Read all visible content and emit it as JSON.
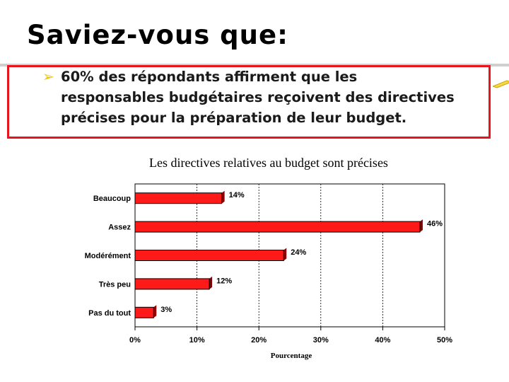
{
  "slide": {
    "title": "Saviez-vous que:",
    "callout_lines": [
      "60% des répondants affirment que les",
      "responsables budgétaires reçoivent des directives",
      "précises pour la préparation de leur budget."
    ],
    "bullet_icon": "arrow-bullet-icon",
    "accent_color": "#e8141b"
  },
  "chart_data": {
    "type": "bar",
    "orientation": "horizontal",
    "title": "Les directives relatives au budget sont précises",
    "xlabel": "Pourcentage",
    "ylabel": "",
    "categories": [
      "Beaucoup",
      "Assez",
      "Modérément",
      "Très peu",
      "Pas du tout"
    ],
    "values": [
      14,
      46,
      24,
      12,
      3
    ],
    "data_labels": [
      "14%",
      "46%",
      "24%",
      "12%",
      "3%"
    ],
    "xlim": [
      0,
      50
    ],
    "xticks": [
      0,
      10,
      20,
      30,
      40,
      50
    ],
    "xtick_labels": [
      "0%",
      "10%",
      "20%",
      "30%",
      "40%",
      "50%"
    ],
    "grid": "vertical dashed",
    "bar_color": "#ff1a1a",
    "bar_shadow_color": "#8b0000"
  }
}
